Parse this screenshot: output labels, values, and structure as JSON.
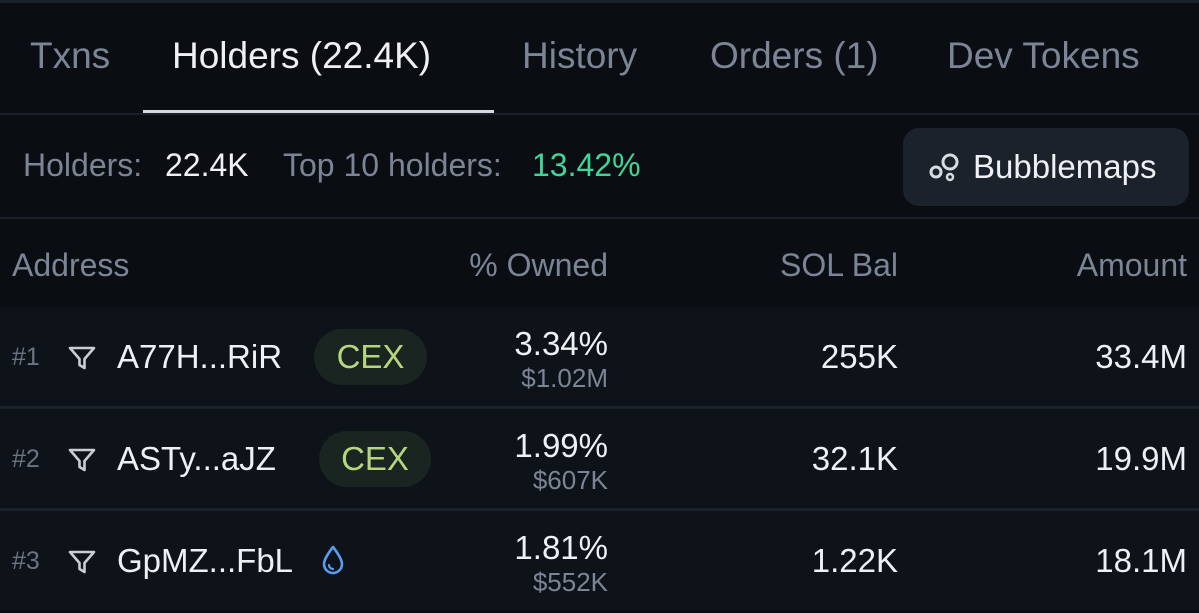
{
  "tabs": [
    {
      "label": "Txns"
    },
    {
      "label": "Holders (22.4K)"
    },
    {
      "label": "History"
    },
    {
      "label": "Orders (1)"
    },
    {
      "label": "Dev Tokens"
    }
  ],
  "active_tab": "Holders (22.4K)",
  "summary": {
    "holders_label": "Holders:",
    "holders_value": "22.4K",
    "top10_label": "Top 10 holders:",
    "top10_value": "13.42%",
    "bubblemaps_label": "Bubblemaps"
  },
  "columns": {
    "address": "Address",
    "owned": "% Owned",
    "sol_bal": "SOL Bal",
    "amount": "Amount"
  },
  "rows": [
    {
      "rank": "#1",
      "address": "A77H...RiR",
      "badge": "CEX",
      "owned_pct": "3.34%",
      "owned_usd": "$1.02M",
      "sol_bal": "255K",
      "amount": "33.4M"
    },
    {
      "rank": "#2",
      "address": "ASTy...aJZ",
      "badge": "CEX",
      "owned_pct": "1.99%",
      "owned_usd": "$607K",
      "sol_bal": "32.1K",
      "amount": "19.9M"
    },
    {
      "rank": "#3",
      "address": "GpMZ...FbL",
      "icon": "droplet-icon",
      "owned_pct": "1.81%",
      "owned_usd": "$552K",
      "sol_bal": "1.22K",
      "amount": "18.1M"
    }
  ],
  "colors": {
    "background": "#0a0d12",
    "row_background": "#0e131a",
    "accent_green": "#3fd69a",
    "cex_text": "#b6d67e",
    "droplet_blue": "#5b9cf0"
  }
}
